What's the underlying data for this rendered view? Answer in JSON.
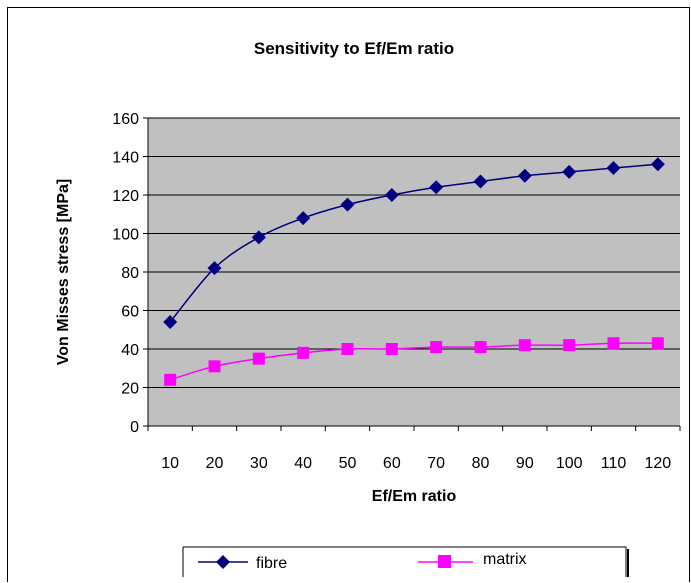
{
  "chart_data": {
    "type": "line",
    "title": "Sensitivity to Ef/Em ratio",
    "xlabel": "Ef/Em ratio",
    "ylabel": "Von Misses stress [MPa]",
    "categories": [
      "10",
      "20",
      "30",
      "40",
      "50",
      "60",
      "70",
      "80",
      "90",
      "100",
      "110",
      "120"
    ],
    "ylim": [
      0,
      160
    ],
    "yticks": [
      0,
      20,
      40,
      60,
      80,
      100,
      120,
      140,
      160
    ],
    "grid": true,
    "legend_position": "bottom",
    "plot_background": "#c0c0c0",
    "series": [
      {
        "name": "fibre",
        "color": "#000080",
        "marker": "diamond",
        "values": [
          54,
          82,
          98,
          108,
          115,
          120,
          124,
          127,
          130,
          132,
          134,
          136
        ]
      },
      {
        "name": "matrix",
        "color": "#ff00ff",
        "marker": "square",
        "values": [
          24,
          31,
          35,
          38,
          40,
          40,
          41,
          41,
          42,
          42,
          43,
          43
        ]
      }
    ]
  }
}
